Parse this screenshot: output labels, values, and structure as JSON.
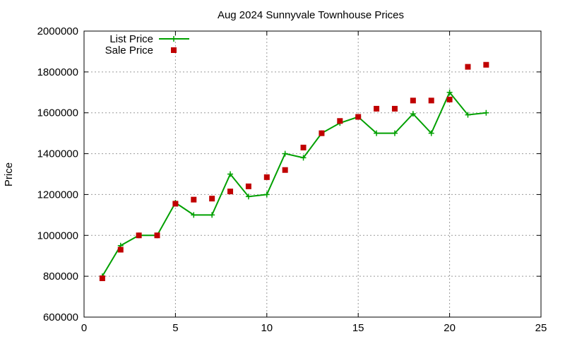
{
  "colors": {
    "list_price": "#00a000",
    "sale_price": "#c00000",
    "grid": "#9a9a9a",
    "frame": "#000000"
  },
  "chart_data": {
    "type": "line",
    "title": "Aug 2024 Sunnyvale Townhouse Prices",
    "xlabel": "",
    "ylabel": "Price",
    "xlim": [
      0,
      25
    ],
    "ylim": [
      600000,
      2000000
    ],
    "x_ticks": [
      0,
      5,
      10,
      15,
      20,
      25
    ],
    "y_ticks": [
      600000,
      800000,
      1000000,
      1200000,
      1400000,
      1600000,
      1800000,
      2000000
    ],
    "x_tick_labels": [
      "0",
      "5",
      "10",
      "15",
      "20",
      "25"
    ],
    "y_tick_labels": [
      "600000",
      "800000",
      "1000000",
      "1200000",
      "1400000",
      "1600000",
      "1800000",
      "2000000"
    ],
    "grid": true,
    "legend_position": "top-left",
    "series": [
      {
        "name": "List Price",
        "style": "line-plus",
        "color": "#00a000",
        "x": [
          1,
          2,
          3,
          4,
          5,
          6,
          7,
          8,
          9,
          10,
          11,
          12,
          13,
          14,
          15,
          16,
          17,
          18,
          19,
          20,
          21,
          22
        ],
        "y": [
          800000,
          950000,
          1000000,
          1000000,
          1160000,
          1100000,
          1100000,
          1300000,
          1190000,
          1200000,
          1400000,
          1380000,
          1500000,
          1550000,
          1580000,
          1500000,
          1500000,
          1595000,
          1500000,
          1700000,
          1590000,
          1600000
        ]
      },
      {
        "name": "Sale Price",
        "style": "square-points",
        "color": "#c00000",
        "x": [
          1,
          2,
          3,
          4,
          5,
          6,
          7,
          8,
          9,
          10,
          11,
          12,
          13,
          14,
          15,
          16,
          17,
          18,
          19,
          20,
          21,
          22
        ],
        "y": [
          790000,
          930000,
          1000000,
          1000000,
          1155000,
          1175000,
          1180000,
          1215000,
          1240000,
          1285000,
          1320000,
          1430000,
          1500000,
          1560000,
          1580000,
          1620000,
          1620000,
          1660000,
          1660000,
          1665000,
          1825000,
          1835000
        ]
      }
    ]
  }
}
